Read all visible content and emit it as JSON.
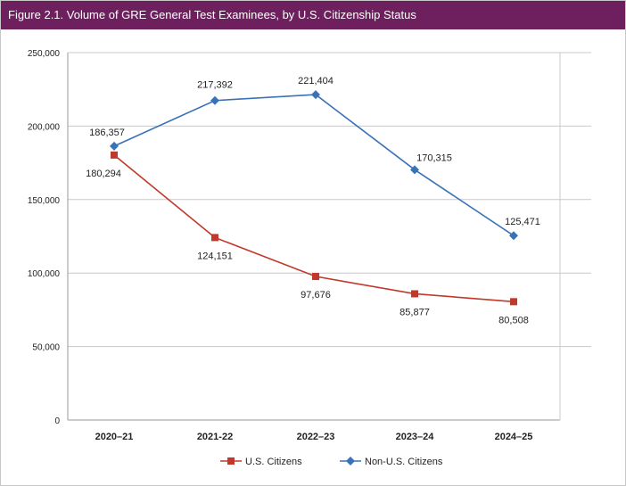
{
  "chart_data": {
    "type": "line",
    "title": "Figure 2.1. Volume of GRE General Test Examinees, by U.S. Citizenship Status",
    "xlabel": "",
    "ylabel": "",
    "categories": [
      "2020–21",
      "2021-22",
      "2022–23",
      "2023–24",
      "2024–25"
    ],
    "ylim": [
      0,
      250000
    ],
    "yticks": [
      0,
      50000,
      100000,
      150000,
      200000,
      250000
    ],
    "ytick_labels": [
      "0",
      "50,000",
      "100,000",
      "150,000",
      "200,000",
      "250,000"
    ],
    "grid": true,
    "legend_position": "bottom",
    "series": [
      {
        "name": "U.S. Citizens",
        "color": "#c0392b",
        "marker": "square",
        "values": [
          180294,
          124151,
          97676,
          85877,
          80508
        ],
        "labels": [
          "180,294",
          "124,151",
          "97,676",
          "85,877",
          "80,508"
        ]
      },
      {
        "name": "Non-U.S. Citizens",
        "color": "#3a72b8",
        "marker": "diamond",
        "values": [
          186357,
          217392,
          221404,
          170315,
          125471
        ],
        "labels": [
          "186,357",
          "217,392",
          "221,404",
          "170,315",
          "125,471"
        ]
      }
    ]
  }
}
